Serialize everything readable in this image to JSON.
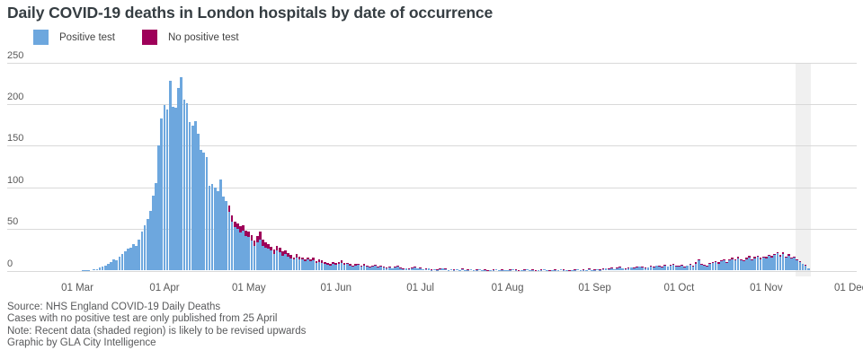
{
  "title": "Daily COVID-19 deaths in London hospitals by date of occurrence",
  "legend": [
    {
      "label": "Positive test",
      "color": "#6da7de"
    },
    {
      "label": "No positive test",
      "color": "#9e0059"
    }
  ],
  "chart_data": {
    "type": "bar",
    "stacked": true,
    "title": "Daily COVID-19 deaths in London hospitals by date of occurrence",
    "xlabel": "",
    "ylabel": "",
    "ylim": [
      0,
      250
    ],
    "y_ticks": [
      0,
      50,
      100,
      150,
      200,
      250
    ],
    "grid": "horizontal",
    "legend_position": "top-left",
    "x_ticks": [
      {
        "label": "01 Mar",
        "day": 0
      },
      {
        "label": "01 Apr",
        "day": 31
      },
      {
        "label": "01 May",
        "day": 61
      },
      {
        "label": "01 Jun",
        "day": 92
      },
      {
        "label": "01 Jul",
        "day": 122
      },
      {
        "label": "01 Aug",
        "day": 153
      },
      {
        "label": "01 Sep",
        "day": 184
      },
      {
        "label": "01 Oct",
        "day": 214
      },
      {
        "label": "01 Nov",
        "day": 245
      },
      {
        "label": "01 Dec",
        "day": 275
      }
    ],
    "start_date": "03 Mar",
    "start_day_offset": 2,
    "shaded_region": {
      "start_day": 255.3,
      "end_day": 261,
      "meaning": "recent data likely to be revised"
    },
    "series": [
      {
        "name": "Positive test",
        "color": "#6da7de",
        "values": [
          1,
          1,
          1,
          0,
          2,
          2,
          4,
          5,
          6,
          8,
          10,
          14,
          12,
          17,
          20,
          23,
          26,
          28,
          32,
          30,
          37,
          47,
          55,
          62,
          72,
          90,
          105,
          150,
          183,
          199,
          194,
          228,
          197,
          196,
          219,
          233,
          206,
          201,
          178,
          174,
          180,
          165,
          145,
          142,
          137,
          102,
          104,
          100,
          95,
          110,
          89,
          84,
          71,
          59,
          52,
          50,
          46,
          48,
          42,
          40,
          36,
          30,
          34,
          37,
          30,
          28,
          26,
          24,
          20,
          24,
          22,
          18,
          20,
          17,
          15,
          13,
          16,
          14,
          13,
          11,
          13,
          11,
          12,
          9,
          10,
          9,
          8,
          7,
          6,
          8,
          7,
          8,
          9,
          7,
          8,
          6,
          5,
          6,
          7,
          5,
          6,
          5,
          4,
          5,
          6,
          4,
          5,
          4,
          3,
          4,
          3,
          4,
          5,
          3,
          2,
          3,
          2,
          3,
          4,
          3,
          3,
          2,
          2,
          3,
          1,
          2,
          1,
          2,
          3,
          2,
          1,
          2,
          1,
          2,
          1,
          2,
          1,
          1,
          2,
          1,
          1,
          2,
          1,
          1,
          0,
          1,
          1,
          2,
          1,
          1,
          1,
          1,
          1,
          2,
          1,
          0,
          1,
          1,
          2,
          1,
          1,
          0,
          1,
          1,
          2,
          1,
          0,
          1,
          1,
          1,
          2,
          1,
          1,
          0,
          1,
          1,
          2,
          1,
          1,
          1,
          2,
          1,
          1,
          2,
          1,
          2,
          3,
          2,
          3,
          2,
          3,
          4,
          3,
          2,
          3,
          4,
          3,
          4,
          5,
          4,
          3,
          4,
          5,
          4,
          6,
          5,
          4,
          6,
          5,
          6,
          7,
          5,
          5,
          6,
          4,
          6,
          7,
          5,
          8,
          12,
          7,
          6,
          5,
          8,
          9,
          10,
          8,
          11,
          12,
          9,
          13,
          14,
          12,
          15,
          13,
          11,
          14,
          16,
          13,
          15,
          17,
          14,
          16,
          15,
          18,
          16,
          19,
          21,
          17,
          20,
          16,
          18,
          15,
          16,
          13,
          10,
          8,
          6,
          3
        ]
      },
      {
        "name": "No positive test",
        "color": "#9e0059",
        "values": [
          0,
          0,
          0,
          0,
          0,
          0,
          0,
          0,
          0,
          0,
          0,
          0,
          0,
          0,
          0,
          0,
          0,
          0,
          0,
          0,
          0,
          0,
          0,
          0,
          0,
          0,
          0,
          0,
          0,
          0,
          0,
          0,
          0,
          0,
          0,
          0,
          0,
          0,
          0,
          0,
          0,
          0,
          0,
          0,
          0,
          0,
          0,
          0,
          0,
          0,
          0,
          0,
          7,
          7,
          7,
          7,
          7,
          6,
          6,
          7,
          7,
          6,
          7,
          10,
          7,
          6,
          6,
          5,
          5,
          6,
          5,
          5,
          4,
          4,
          4,
          3,
          4,
          3,
          3,
          3,
          3,
          2,
          4,
          2,
          3,
          3,
          2,
          2,
          2,
          2,
          2,
          2,
          3,
          2,
          1,
          2,
          1,
          2,
          1,
          1,
          2,
          1,
          1,
          1,
          1,
          1,
          1,
          1,
          1,
          1,
          0,
          1,
          1,
          1,
          1,
          0,
          1,
          1,
          1,
          0,
          1,
          0,
          1,
          0,
          1,
          0,
          1,
          1,
          0,
          1,
          0,
          0,
          1,
          0,
          0,
          1,
          0,
          1,
          0,
          0,
          1,
          0,
          0,
          1,
          1,
          0,
          1,
          0,
          0,
          1,
          0,
          0,
          1,
          0,
          1,
          1,
          0,
          1,
          0,
          0,
          1,
          1,
          0,
          1,
          0,
          0,
          1,
          0,
          1,
          0,
          0,
          1,
          0,
          1,
          0,
          1,
          0,
          0,
          1,
          0,
          1,
          0,
          1,
          0,
          1,
          1,
          0,
          1,
          1,
          0,
          1,
          1,
          0,
          1,
          1,
          0,
          1,
          1,
          0,
          1,
          1,
          0,
          1,
          1,
          0,
          1,
          1,
          1,
          0,
          1,
          1,
          1,
          1,
          1,
          1,
          0,
          1,
          1,
          2,
          2,
          1,
          1,
          1,
          1,
          1,
          1,
          2,
          1,
          2,
          1,
          1,
          2,
          1,
          2,
          1,
          1,
          2,
          2,
          1,
          2,
          1,
          2,
          1,
          2,
          1,
          2,
          1,
          1,
          2,
          2,
          1,
          2,
          1,
          1,
          1,
          1,
          0,
          1,
          0
        ]
      }
    ]
  },
  "footer": {
    "lines": [
      "Source: NHS England COVID-19 Daily Deaths",
      "Cases with no positive test are only published from 25 April",
      "Note: Recent data (shaded region) is likely to be revised upwards",
      "Graphic by GLA City Intelligence"
    ]
  }
}
